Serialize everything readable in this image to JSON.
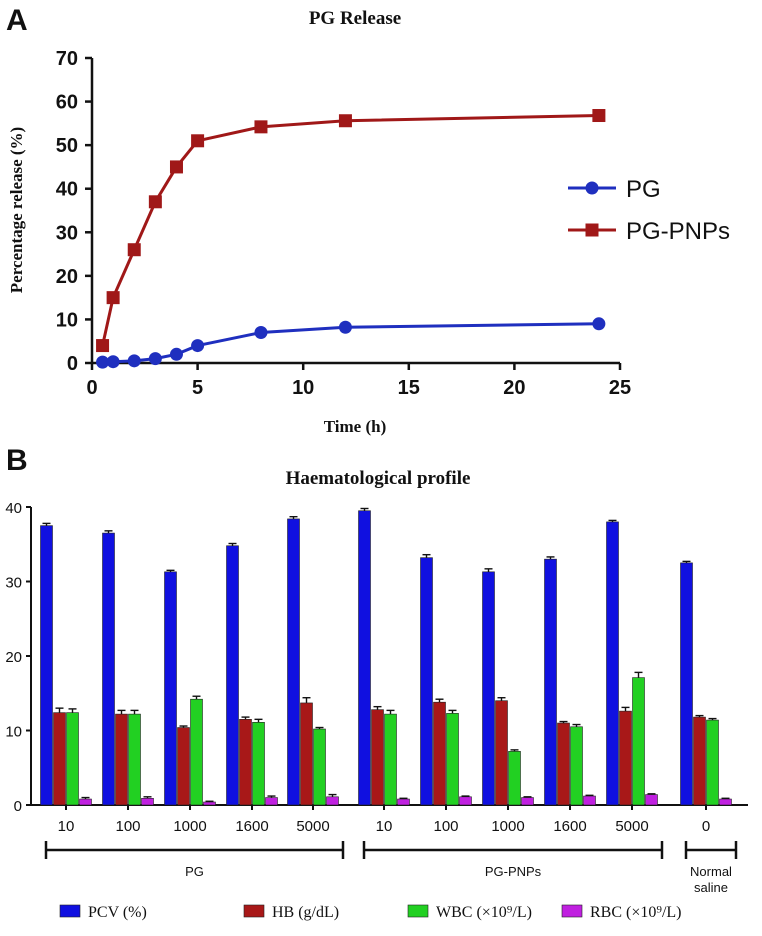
{
  "chart_data": [
    {
      "panel": "A",
      "type": "line",
      "title": "PG Release",
      "xlabel": "Time (h)",
      "ylabel": "Percentage release (%)",
      "xlim": [
        0,
        25
      ],
      "ylim": [
        0,
        70
      ],
      "x_ticks": [
        "0",
        "5",
        "10",
        "15",
        "20",
        "25"
      ],
      "y_ticks": [
        "0",
        "10",
        "20",
        "30",
        "40",
        "50",
        "60",
        "70"
      ],
      "series": [
        {
          "name": "PG",
          "color": "#1f2fbf",
          "marker": "circle",
          "x": [
            0.5,
            1,
            2,
            3,
            4,
            5,
            8,
            12,
            24
          ],
          "y": [
            0.2,
            0.3,
            0.5,
            1,
            2,
            4,
            7,
            8.2,
            9
          ]
        },
        {
          "name": "PG-PNPs",
          "color": "#a01818",
          "marker": "square",
          "x": [
            0.5,
            1,
            2,
            3,
            4,
            5,
            8,
            12,
            24
          ],
          "y": [
            4,
            15,
            26,
            37,
            45,
            51,
            54.2,
            55.6,
            56.8
          ]
        }
      ],
      "legend": "right"
    },
    {
      "panel": "B",
      "type": "bar",
      "title": "Haematological profile",
      "ylim": [
        0,
        40
      ],
      "y_ticks": [
        "0",
        "10",
        "20",
        "30",
        "40"
      ],
      "categories": [
        "10",
        "100",
        "1000",
        "1600",
        "5000",
        "10",
        "100",
        "1000",
        "1600",
        "5000",
        "0"
      ],
      "groups": [
        {
          "label": "PG",
          "lines": [
            "PG"
          ],
          "start": 0,
          "end": 4
        },
        {
          "label": "PG-PNPs",
          "lines": [
            "PG-PNPs"
          ],
          "start": 5,
          "end": 9
        },
        {
          "label": "Normal saline",
          "lines": [
            "Normal",
            "saline"
          ],
          "start": 10,
          "end": 10
        }
      ],
      "series": [
        {
          "name": "PCV (%)",
          "color": "#1010e0",
          "values": [
            37.5,
            36.5,
            31.3,
            34.8,
            38.4,
            39.5,
            33.2,
            31.3,
            33.0,
            38.0,
            32.5
          ],
          "errors": [
            0.3,
            0.3,
            0.2,
            0.3,
            0.3,
            0.3,
            0.4,
            0.4,
            0.3,
            0.2,
            0.2
          ]
        },
        {
          "name": "HB (g/dL)",
          "color": "#a81818",
          "values": [
            12.4,
            12.2,
            10.4,
            11.5,
            13.7,
            12.8,
            13.8,
            14.0,
            11.0,
            12.6,
            11.8
          ],
          "errors": [
            0.6,
            0.5,
            0.2,
            0.3,
            0.7,
            0.4,
            0.4,
            0.4,
            0.2,
            0.5,
            0.2
          ]
        },
        {
          "name": "WBC (×10⁹/L)",
          "color": "#22d022",
          "values": [
            12.4,
            12.2,
            14.2,
            11.1,
            10.2,
            12.2,
            12.3,
            7.2,
            10.5,
            17.1,
            11.4
          ],
          "errors": [
            0.5,
            0.5,
            0.4,
            0.4,
            0.2,
            0.5,
            0.4,
            0.2,
            0.3,
            0.7,
            0.2
          ]
        },
        {
          "name": "RBC (×10⁹/L)",
          "color": "#c020e0",
          "values": [
            0.8,
            0.9,
            0.4,
            1.0,
            1.1,
            0.8,
            1.1,
            1.0,
            1.2,
            1.4,
            0.8
          ],
          "errors": [
            0.2,
            0.2,
            0.1,
            0.2,
            0.3,
            0.1,
            0.1,
            0.1,
            0.1,
            0.1,
            0.1
          ]
        }
      ],
      "legend": "bottom"
    }
  ],
  "labels": {
    "panel_a": "A",
    "panel_b": "B"
  }
}
